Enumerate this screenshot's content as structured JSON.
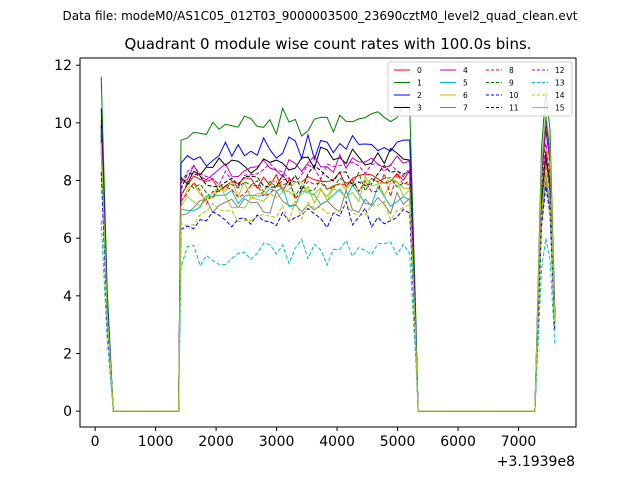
{
  "suptitle": "Data file: modeM0/AS1C05_012T03_9000003500_23690cztM0_level2_quad_clean.evt",
  "chart_data": {
    "type": "line",
    "title": "Quadrant 0 module wise count rates with 100.0s bins.",
    "xlabel": "",
    "ylabel": "",
    "x_offset_label": "+3.1939e8",
    "xlim": [
      -250,
      7950
    ],
    "ylim": [
      -0.55,
      12.25
    ],
    "xticks": [
      0,
      1000,
      2000,
      3000,
      4000,
      5000,
      6000,
      7000
    ],
    "yticks": [
      0,
      2,
      4,
      6,
      8,
      10,
      12
    ],
    "gaps": [
      [
        330,
        1380
      ],
      [
        5340,
        7270
      ]
    ],
    "segments": [
      {
        "x_start": 100,
        "x_end": 5300,
        "step": 100,
        "drop": [
          200,
          300,
          1400
        ]
      },
      {
        "x_start": 7300,
        "x_end": 7600,
        "step": 100,
        "rise": [
          7300,
          7400
        ],
        "drop": [
          7600
        ]
      }
    ],
    "legend_position": "upper-right",
    "series": [
      {
        "name": "0",
        "color": "#ff0000",
        "dash": "solid",
        "start": 10.1,
        "level": 7.8,
        "trend": 0.3,
        "noise": 0.25,
        "peak": 9.0,
        "end": 3.2
      },
      {
        "name": "1",
        "color": "#008000",
        "dash": "solid",
        "start": 11.6,
        "level": 9.7,
        "trend": 0.6,
        "noise": 0.3,
        "peak": 11.1,
        "end": 3.5
      },
      {
        "name": "2",
        "color": "#0000ff",
        "dash": "solid",
        "start": 10.5,
        "level": 8.9,
        "trend": 0.4,
        "noise": 0.3,
        "peak": 10.2,
        "end": 3.4
      },
      {
        "name": "3",
        "color": "#000000",
        "dash": "solid",
        "start": 9.9,
        "level": 8.4,
        "trend": 0.5,
        "noise": 0.35,
        "peak": 9.8,
        "end": 3.3
      },
      {
        "name": "4",
        "color": "#bf00bf",
        "dash": "solid",
        "start": 9.7,
        "level": 8.3,
        "trend": 0.4,
        "noise": 0.3,
        "peak": 9.9,
        "end": 3.3
      },
      {
        "name": "5",
        "color": "#00bfbf",
        "dash": "solid",
        "start": 9.0,
        "level": 7.3,
        "trend": 0.2,
        "noise": 0.25,
        "peak": 8.2,
        "end": 3.0
      },
      {
        "name": "6",
        "color": "#bfbf00",
        "dash": "solid",
        "start": 9.3,
        "level": 7.5,
        "trend": 0.3,
        "noise": 0.3,
        "peak": 8.6,
        "end": 3.1
      },
      {
        "name": "7",
        "color": "#808080",
        "dash": "solid",
        "start": 9.1,
        "level": 7.1,
        "trend": 0.1,
        "noise": 0.3,
        "peak": 8.0,
        "end": 3.0
      },
      {
        "name": "8",
        "color": "#ff0000",
        "dash": "dashed",
        "start": 9.4,
        "level": 7.6,
        "trend": 0.3,
        "noise": 0.25,
        "peak": 8.7,
        "end": 3.1
      },
      {
        "name": "9",
        "color": "#008000",
        "dash": "dashed",
        "start": 9.5,
        "level": 7.7,
        "trend": 0.3,
        "noise": 0.25,
        "peak": 8.8,
        "end": 3.1
      },
      {
        "name": "10",
        "color": "#0000ff",
        "dash": "dashed",
        "start": 8.3,
        "level": 6.6,
        "trend": 0.2,
        "noise": 0.3,
        "peak": 7.8,
        "end": 2.8
      },
      {
        "name": "11",
        "color": "#000000",
        "dash": "dashed",
        "start": 9.6,
        "level": 8.0,
        "trend": 0.2,
        "noise": 0.25,
        "peak": 8.9,
        "end": 3.2
      },
      {
        "name": "12",
        "color": "#bf00bf",
        "dash": "dashed",
        "start": 9.8,
        "level": 8.2,
        "trend": 0.3,
        "noise": 0.3,
        "peak": 9.3,
        "end": 3.3
      },
      {
        "name": "13",
        "color": "#00bfbf",
        "dash": "dashed",
        "start": 6.6,
        "level": 5.3,
        "trend": 0.4,
        "noise": 0.25,
        "peak": 6.0,
        "end": 2.3
      },
      {
        "name": "14",
        "color": "#bfbf00",
        "dash": "dashed",
        "start": 9.2,
        "level": 6.8,
        "trend": 0.2,
        "noise": 0.35,
        "peak": 8.3,
        "end": 3.0
      },
      {
        "name": "15",
        "color": "#9acd32",
        "dash": "solid",
        "start": 9.3,
        "level": 7.4,
        "trend": 0.3,
        "noise": 0.3,
        "peak": 10.4,
        "end": 3.1
      }
    ]
  }
}
